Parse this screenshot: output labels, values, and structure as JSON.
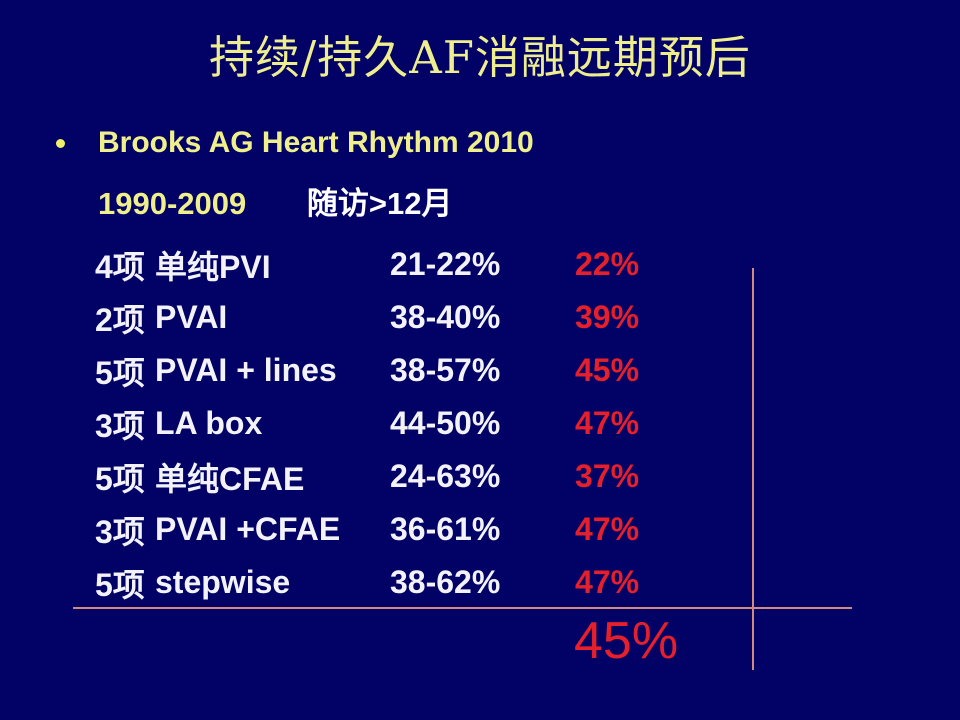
{
  "slide": {
    "title": "持续/持久AF消融远期预后",
    "bullet_text": "Brooks AG Heart Rhythm 2010",
    "period": "1990-2009",
    "followup": "随访>12月",
    "highlight": "45%"
  },
  "table": {
    "rows": [
      {
        "count": "4项",
        "treatment": "单纯PVI",
        "range": "21-22%",
        "result": "22%"
      },
      {
        "count": "2项",
        "treatment": "PVAI",
        "range": "38-40%",
        "result": "39%"
      },
      {
        "count": "5项",
        "treatment": "PVAI + lines",
        "range": "38-57%",
        "result": "45%"
      },
      {
        "count": "3项",
        "treatment": "LA box",
        "range": "44-50%",
        "result": "47%"
      },
      {
        "count": "5项",
        "treatment": "单纯CFAE",
        "range": "24-63%",
        "result": "37%"
      },
      {
        "count": "3项",
        "treatment": "PVAI +CFAE",
        "range": "36-61%",
        "result": "47%"
      },
      {
        "count": "5项",
        "treatment": "stepwise",
        "range": "38-62%",
        "result": "47%"
      }
    ]
  },
  "colors": {
    "background": "#010166",
    "title_yellow": "#eeee8e",
    "body_white": "#f2f2f8",
    "accent_red": "#e6202a",
    "line_salmon": "#d28a7c"
  }
}
